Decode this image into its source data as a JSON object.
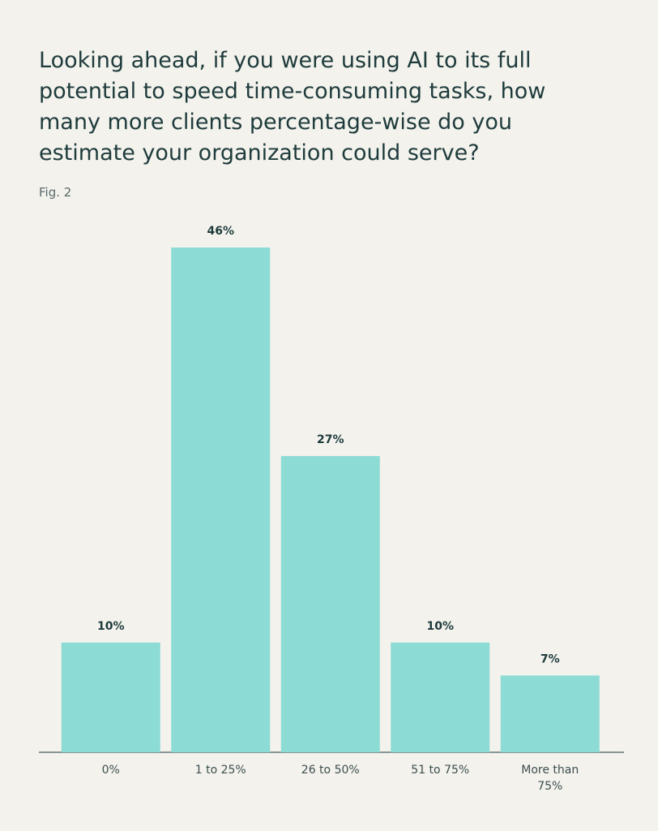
{
  "chart_data": {
    "type": "bar",
    "title": "Looking ahead, if you were using AI to its full potential to speed time-consuming tasks, how many more clients percentage-wise do you estimate your organization could serve?",
    "subtitle": "Fig. 2",
    "categories": [
      "0%",
      "1 to 25%",
      "26 to 50%",
      "51 to 75%",
      "More than 75%"
    ],
    "values": [
      10,
      46,
      27,
      10,
      7
    ],
    "value_labels": [
      "10%",
      "46%",
      "27%",
      "10%",
      "7%"
    ],
    "color": "#8ddbd5"
  }
}
